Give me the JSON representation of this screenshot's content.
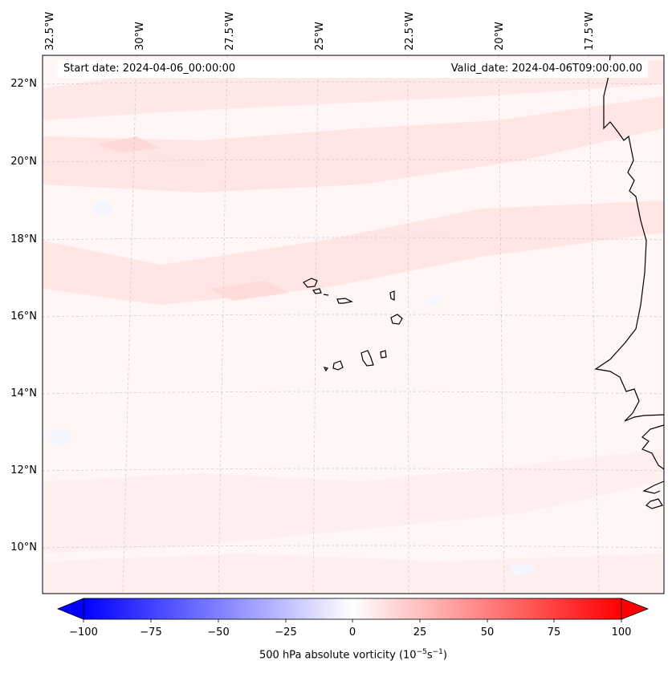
{
  "map": {
    "title": "500 hPa absolute vorticity",
    "start_date": "Start date: 2024-04-06_00:00:00",
    "valid_date": "Valid_date: 2024-04-06T09:00:00.00",
    "lon_labels": [
      "32.5°W",
      "30°W",
      "27.5°W",
      "25°W",
      "22.5°W",
      "20°W",
      "17.5°W"
    ],
    "lat_labels": [
      "22°N",
      "20°N",
      "18°N",
      "16°N",
      "14°N",
      "12°N",
      "10°N"
    ],
    "extent": {
      "lon_min": -32.8,
      "lon_max": -15.5,
      "lat_min": 8.9,
      "lat_max": 22.8
    }
  },
  "colorbar": {
    "ticks": [
      "−100",
      "−75",
      "−50",
      "−25",
      "0",
      "25",
      "50",
      "75",
      "100"
    ],
    "label": "500 hPa absolute vorticity (10",
    "units_exp": "−5",
    "units_mid": "s",
    "units_exp2": "−1",
    "units_end": ")",
    "range": [
      -100,
      100
    ],
    "colors": {
      "negative": "#0000ff",
      "zero": "#ffffff",
      "positive": "#ff0000"
    }
  }
}
